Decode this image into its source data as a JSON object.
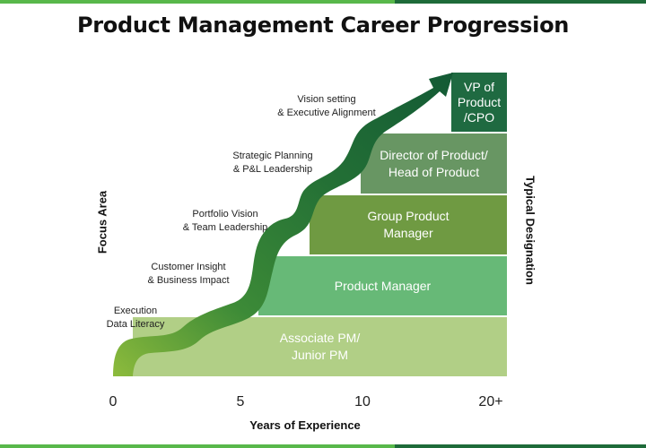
{
  "title": "Product Management Career Progression",
  "axes": {
    "left_label": "Focus Area",
    "right_label": "Typical Designation",
    "x_label": "Years of Experience",
    "x_ticks": [
      "0",
      "5",
      "10",
      "20+"
    ]
  },
  "designations": [
    {
      "lines": [
        "Associate PM/",
        "Junior PM"
      ],
      "color": "#b1cf86"
    },
    {
      "lines": [
        "Product Manager"
      ],
      "color": "#67b977"
    },
    {
      "lines": [
        "Group Product",
        "Manager"
      ],
      "color": "#6f9a42"
    },
    {
      "lines": [
        "Director of Product/",
        "Head of Product"
      ],
      "color": "#689663"
    },
    {
      "lines": [
        "VP of",
        "Product",
        "/CPO"
      ],
      "color": "#1f6a41"
    }
  ],
  "focus_areas": [
    {
      "lines": [
        "Execution",
        "Data Literacy"
      ]
    },
    {
      "lines": [
        "Customer Insight",
        "& Business Impact"
      ]
    },
    {
      "lines": [
        "Portfolio Vision",
        "& Team Leadership"
      ]
    },
    {
      "lines": [
        "Strategic Planning",
        "& P&L Leadership"
      ]
    },
    {
      "lines": [
        "Vision setting",
        "& Executive Alignment"
      ]
    }
  ]
}
